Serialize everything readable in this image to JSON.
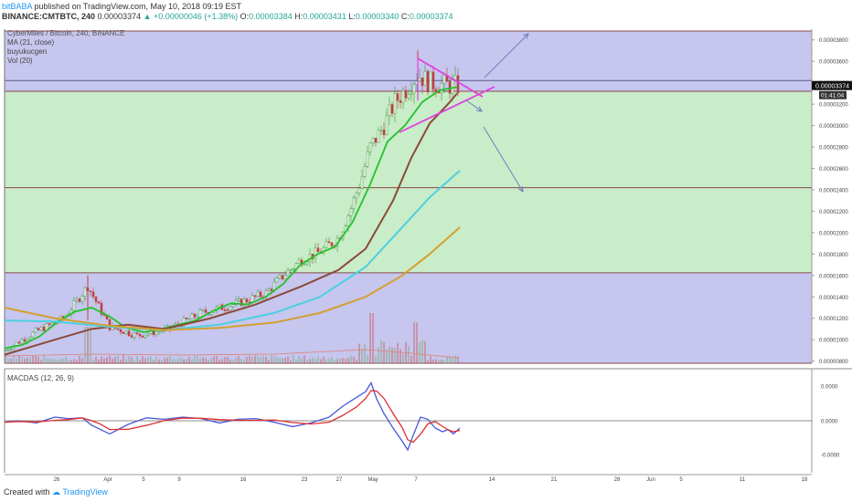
{
  "header": {
    "author": "bitBABA",
    "published": "published on TradingView.com, May 10, 2018 09:19 EST",
    "symbol_line": "BINANCE:CMTBTC, 240",
    "last": "0.00003374",
    "change": "+0.00000046 (+1.38%)",
    "o_label": "O:",
    "o": "0.00003384",
    "h_label": "H:",
    "h": "0.00003431",
    "l_label": "L:",
    "l": "0.00003340",
    "c_label": "C:",
    "c": "0.00003374"
  },
  "legend": {
    "pair": "CyberMiles / Bitcoin, 240, BINANCE",
    "ma": "MA (21, close)",
    "buy": "buyukucgen",
    "vol": "Vol (20)",
    "macd": "MACDAS (12, 26, 9)"
  },
  "footer": {
    "created": "Created with",
    "brand": "TradingView"
  },
  "colors": {
    "purple_zone": "#c6c6ee",
    "green_zone": "#c9ecc9",
    "green_ma": "#22c32a",
    "brown_ma": "#8a4a38",
    "cyan_ma": "#4dd0e1",
    "orange_ma": "#d4a030",
    "triangle": "#e040e0",
    "arrow": "#6f7ec0",
    "macd": "#4858d8",
    "signal": "#e03030",
    "candle_up": "#3a9a3a",
    "candle_down": "#c04040",
    "price_tag": "#111111"
  },
  "chart_data": [
    {
      "type": "line",
      "y_axis": {
        "ticks": [
          "0.00003800",
          "0.00003600",
          "0.00003400",
          "0.00003200",
          "0.00003000",
          "0.00002800",
          "0.00002600",
          "0.00002400",
          "0.00002200",
          "0.00002000",
          "0.00001800",
          "0.00001600",
          "0.00001400",
          "0.00001200",
          "0.00001000",
          "0.00000800"
        ],
        "range": [
          7.8e-06,
          3.9e-05
        ]
      },
      "x_axis": {
        "ticks": [
          "26",
          "Apr",
          "5",
          "9",
          "16",
          "23",
          "27",
          "May",
          "7",
          "14",
          "21",
          "28",
          "Jun",
          "5",
          "11",
          "18"
        ]
      },
      "zones": [
        {
          "color": "purple",
          "from": 3.32e-05,
          "to": 3.883e-05
        },
        {
          "color": "green",
          "from": 1.625e-05,
          "to": 3.32e-05
        },
        {
          "color": "purple",
          "from": 7.8e-06,
          "to": 1.625e-05
        }
      ],
      "horizontal_levels": [
        3.883e-05,
        3.42e-05,
        3.32e-05,
        2.42e-05,
        1.625e-05,
        7.8e-06
      ],
      "last_price": "0.00003374",
      "countdown": "01:41:04",
      "series": [
        {
          "name": "MA (21, close)",
          "values": [
            9.2e-06,
            9.5e-06,
            1.03e-05,
            1.16e-05,
            1.26e-05,
            1.3e-05,
            1.22e-05,
            1.11e-05,
            1.07e-05,
            1.1e-05,
            1.14e-05,
            1.18e-05,
            1.27e-05,
            1.34e-05,
            1.33e-05,
            1.4e-05,
            1.52e-05,
            1.7e-05,
            1.8e-05,
            1.87e-05,
            2.1e-05,
            2.45e-05,
            2.85e-05,
            3e-05,
            3.22e-05,
            3.33e-05,
            3.36e-05
          ]
        }
      ]
    },
    {
      "type": "line",
      "y_axis": {
        "ticks": [
          "0.0000",
          "0.0000",
          "-0.0000"
        ]
      },
      "series": [
        {
          "name": "MACDAS (12, 26, 9)"
        }
      ]
    }
  ]
}
